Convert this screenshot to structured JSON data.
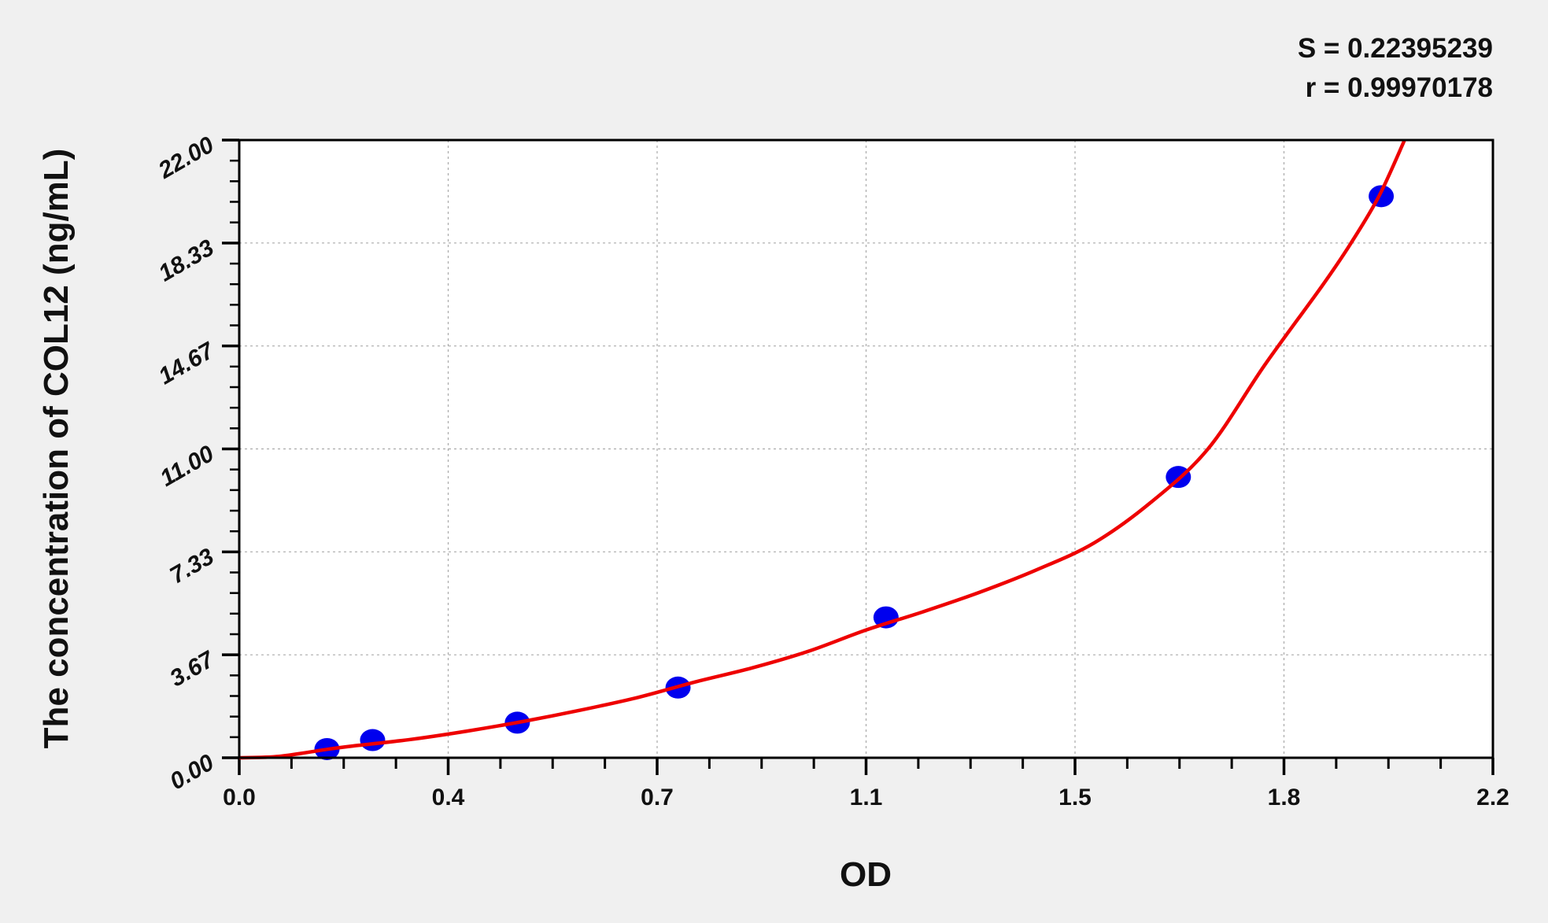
{
  "chart_data": {
    "type": "scatter",
    "xlabel": "OD",
    "ylabel": "The concentration of COL12 (ng/mL)",
    "xlim": [
      0,
      2.2
    ],
    "ylim": [
      0,
      22
    ],
    "x_tick_labels": [
      "0.0",
      "0.4",
      "0.7",
      "1.1",
      "1.5",
      "1.8",
      "2.2"
    ],
    "y_tick_labels": [
      "0.00",
      "3.67",
      "7.33",
      "11.00",
      "14.67",
      "18.33",
      "22.00"
    ],
    "grid": true,
    "annotations": [
      "S = 0.22395239",
      "r = 0.99970178"
    ],
    "points": {
      "color": "#0000ee",
      "x": [
        0.154,
        0.234,
        0.488,
        0.77,
        1.135,
        1.648,
        2.004
      ],
      "y": [
        0.31,
        0.63,
        1.25,
        2.5,
        5.0,
        10.0,
        20.0
      ]
    },
    "fit_curve": {
      "color": "#ee0000",
      "x": [
        0.0,
        0.07,
        0.154,
        0.2,
        0.3,
        0.4,
        0.5,
        0.6,
        0.7,
        0.8,
        0.9,
        1.0,
        1.1,
        1.2,
        1.3,
        1.4,
        1.5,
        1.6,
        1.7,
        1.8,
        1.9,
        1.95,
        2.0,
        2.045
      ],
      "y": [
        0.0,
        0.05,
        0.3,
        0.42,
        0.65,
        0.95,
        1.3,
        1.7,
        2.15,
        2.7,
        3.2,
        3.8,
        4.55,
        5.2,
        5.9,
        6.7,
        7.65,
        9.1,
        11.0,
        14.0,
        16.8,
        18.3,
        20.0,
        22.0
      ]
    }
  }
}
